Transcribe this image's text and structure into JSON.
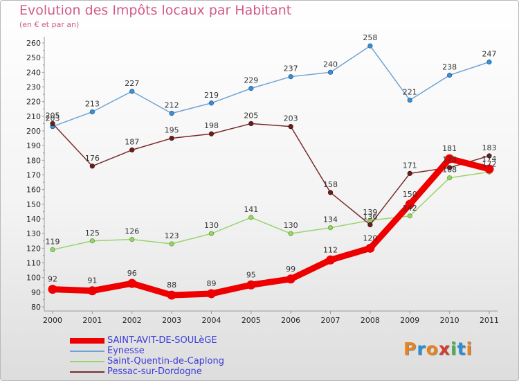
{
  "title": "Evolution des Impôts locaux par Habitant",
  "subtitle": "(en € et par an)",
  "logo": {
    "text": "Proxiti",
    "colors": [
      "#e8831f",
      "#2a8fd4",
      "#e8831f",
      "#d63a2f",
      "#4bb04a",
      "#2a8fd4",
      "#e8831f"
    ]
  },
  "chart_data": {
    "type": "line",
    "title": "Evolution des Impôts locaux par Habitant",
    "subtitle": "(en € et par an)",
    "xlabel": "",
    "ylabel": "",
    "x": [
      "2000",
      "2001",
      "2002",
      "2003",
      "2004",
      "2005",
      "2006",
      "2007",
      "2008",
      "2009",
      "2010",
      "2011"
    ],
    "ylim": [
      80,
      260
    ],
    "ytick_step": 10,
    "grid": false,
    "legend_position": "bottom-left",
    "series": [
      {
        "name": "SAINT-AVIT-DE-SOULèGE",
        "color": "#ee0000",
        "values": [
          92,
          91,
          96,
          88,
          89,
          95,
          99,
          112,
          120,
          150,
          181,
          174
        ],
        "labels": [
          "92",
          "91",
          "96",
          "88",
          "89",
          "95",
          "99",
          "112",
          "120",
          "150",
          "181",
          "174"
        ]
      },
      {
        "name": "Eynesse",
        "color": "#6fa3d4",
        "values": [
          203,
          213,
          227,
          212,
          219,
          229,
          237,
          240,
          258,
          221,
          238,
          247
        ],
        "labels": [
          "203",
          "213",
          "227",
          "212",
          "219",
          "229",
          "237",
          "240",
          "258",
          "221",
          "238",
          "247"
        ]
      },
      {
        "name": "Saint-Quentin-de-Caplong",
        "color": "#9ad36a",
        "values": [
          119,
          125,
          126,
          123,
          130,
          141,
          130,
          134,
          139,
          142,
          168,
          172
        ],
        "labels": [
          "119",
          "125",
          "126",
          "123",
          "130",
          "141",
          "130",
          "134",
          "139",
          "142",
          "168",
          "172"
        ]
      },
      {
        "name": "Pessac-sur-Dordogne",
        "color": "#7a2a2a",
        "values": [
          205,
          176,
          187,
          195,
          198,
          205,
          203,
          158,
          136,
          171,
          175,
          183
        ],
        "labels": [
          "205",
          "176",
          "187",
          "195",
          "198",
          "205",
          "203",
          "158",
          "136",
          "171",
          "175",
          "183"
        ]
      }
    ]
  }
}
